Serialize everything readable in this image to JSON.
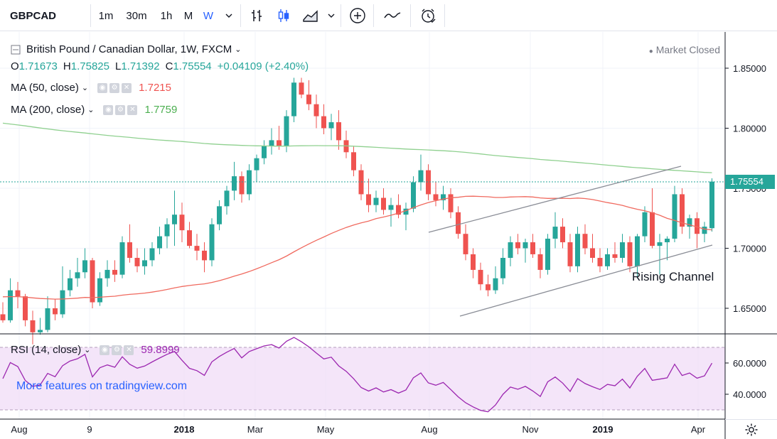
{
  "toolbar": {
    "symbol": "GBPCAD",
    "intervals": [
      "1m",
      "30m",
      "1h",
      "M",
      "W"
    ],
    "active_interval": "W",
    "more_intervals_icon": "chevron-down-icon",
    "tools": [
      "bar-chart-icon",
      "candles-icon",
      "area-chart-icon",
      "chevron-down-icon",
      "plus-circle-icon",
      "compare-icon",
      "alert-clock-icon"
    ]
  },
  "legend": {
    "title": "British Pound / Canadian Dollar, 1W, FXCM",
    "open_label": "O",
    "open": "1.71673",
    "high_label": "H",
    "high": "1.75825",
    "low_label": "L",
    "low": "1.71392",
    "close_label": "C",
    "close": "1.75554",
    "change": "+0.04109 (+2.40%)",
    "ma50_label": "MA (50, close)",
    "ma50_value": "1.7215",
    "ma200_label": "MA (200, close)",
    "ma200_value": "1.7759",
    "rsi_label": "RSI (14, close)",
    "rsi_value": "59.8999"
  },
  "market_status": "Market Closed",
  "watermark": "More features on tradingview.com",
  "annotation": "Rising Channel",
  "last_price_tag": "1.75554",
  "colors": {
    "up": "#26a69a",
    "down": "#ef5350",
    "ma50": "#f06a5f",
    "ma200": "#8fd08f",
    "rsi": "#9c27b0",
    "accent": "#2962ff"
  },
  "chart_data": {
    "type": "candlestick",
    "instrument": "GBPCAD",
    "timeframe": "1W",
    "y_axis": {
      "ticks": [
        "1.85000",
        "1.80000",
        "1.75000",
        "1.70000",
        "1.65000"
      ]
    },
    "x_axis": {
      "ticks": [
        "Aug",
        "9",
        "2018",
        "Mar",
        "May",
        "Aug",
        "Nov",
        "2019",
        "Apr"
      ]
    },
    "candles": [
      [
        1.645,
        1.655,
        1.638,
        1.64
      ],
      [
        1.64,
        1.675,
        1.638,
        1.665
      ],
      [
        1.665,
        1.672,
        1.65,
        1.66
      ],
      [
        1.66,
        1.662,
        1.635,
        1.64
      ],
      [
        1.64,
        1.648,
        1.62,
        1.63
      ],
      [
        1.63,
        1.642,
        1.628,
        1.632
      ],
      [
        1.632,
        1.66,
        1.63,
        1.65
      ],
      [
        1.65,
        1.658,
        1.64,
        1.645
      ],
      [
        1.645,
        1.685,
        1.642,
        1.665
      ],
      [
        1.665,
        1.682,
        1.66,
        1.675
      ],
      [
        1.675,
        1.692,
        1.668,
        1.68
      ],
      [
        1.68,
        1.7,
        1.675,
        1.69
      ],
      [
        1.69,
        1.692,
        1.65,
        1.655
      ],
      [
        1.655,
        1.68,
        1.652,
        1.675
      ],
      [
        1.675,
        1.69,
        1.668,
        1.682
      ],
      [
        1.682,
        1.69,
        1.672,
        1.678
      ],
      [
        1.678,
        1.71,
        1.675,
        1.705
      ],
      [
        1.705,
        1.72,
        1.688,
        1.692
      ],
      [
        1.692,
        1.7,
        1.68,
        1.685
      ],
      [
        1.685,
        1.7,
        1.678,
        1.69
      ],
      [
        1.69,
        1.705,
        1.685,
        1.7
      ],
      [
        1.7,
        1.718,
        1.695,
        1.71
      ],
      [
        1.71,
        1.725,
        1.7,
        1.72
      ],
      [
        1.72,
        1.748,
        1.702,
        1.728
      ],
      [
        1.728,
        1.738,
        1.705,
        1.715
      ],
      [
        1.715,
        1.722,
        1.7,
        1.702
      ],
      [
        1.702,
        1.712,
        1.69,
        1.698
      ],
      [
        1.698,
        1.705,
        1.68,
        1.69
      ],
      [
        1.69,
        1.725,
        1.685,
        1.72
      ],
      [
        1.72,
        1.74,
        1.715,
        1.735
      ],
      [
        1.735,
        1.752,
        1.728,
        1.748
      ],
      [
        1.748,
        1.772,
        1.74,
        1.76
      ],
      [
        1.76,
        1.764,
        1.738,
        1.745
      ],
      [
        1.745,
        1.77,
        1.74,
        1.765
      ],
      [
        1.765,
        1.778,
        1.755,
        1.775
      ],
      [
        1.775,
        1.79,
        1.77,
        1.785
      ],
      [
        1.785,
        1.8,
        1.778,
        1.79
      ],
      [
        1.79,
        1.802,
        1.782,
        1.785
      ],
      [
        1.785,
        1.815,
        1.78,
        1.81
      ],
      [
        1.81,
        1.842,
        1.805,
        1.838
      ],
      [
        1.838,
        1.842,
        1.825,
        1.828
      ],
      [
        1.828,
        1.84,
        1.815,
        1.82
      ],
      [
        1.82,
        1.828,
        1.8,
        1.81
      ],
      [
        1.81,
        1.82,
        1.795,
        1.8
      ],
      [
        1.8,
        1.812,
        1.79,
        1.805
      ],
      [
        1.805,
        1.815,
        1.782,
        1.79
      ],
      [
        1.79,
        1.798,
        1.775,
        1.78
      ],
      [
        1.78,
        1.785,
        1.76,
        1.765
      ],
      [
        1.765,
        1.77,
        1.74,
        1.745
      ],
      [
        1.745,
        1.758,
        1.73,
        1.736
      ],
      [
        1.736,
        1.748,
        1.73,
        1.742
      ],
      [
        1.742,
        1.75,
        1.728,
        1.732
      ],
      [
        1.732,
        1.742,
        1.718,
        1.736
      ],
      [
        1.736,
        1.745,
        1.725,
        1.728
      ],
      [
        1.728,
        1.738,
        1.715,
        1.733
      ],
      [
        1.733,
        1.76,
        1.73,
        1.755
      ],
      [
        1.755,
        1.778,
        1.748,
        1.765
      ],
      [
        1.765,
        1.77,
        1.74,
        1.745
      ],
      [
        1.745,
        1.755,
        1.735,
        1.74
      ],
      [
        1.74,
        1.752,
        1.732,
        1.745
      ],
      [
        1.745,
        1.75,
        1.725,
        1.73
      ],
      [
        1.73,
        1.735,
        1.708,
        1.712
      ],
      [
        1.712,
        1.72,
        1.69,
        1.695
      ],
      [
        1.695,
        1.7,
        1.675,
        1.682
      ],
      [
        1.682,
        1.688,
        1.665,
        1.67
      ],
      [
        1.67,
        1.678,
        1.66,
        1.665
      ],
      [
        1.665,
        1.685,
        1.662,
        1.675
      ],
      [
        1.675,
        1.7,
        1.67,
        1.692
      ],
      [
        1.692,
        1.71,
        1.685,
        1.705
      ],
      [
        1.705,
        1.712,
        1.695,
        1.7
      ],
      [
        1.7,
        1.708,
        1.688,
        1.705
      ],
      [
        1.705,
        1.712,
        1.692,
        1.695
      ],
      [
        1.695,
        1.7,
        1.675,
        1.682
      ],
      [
        1.682,
        1.712,
        1.678,
        1.708
      ],
      [
        1.708,
        1.73,
        1.7,
        1.718
      ],
      [
        1.718,
        1.725,
        1.7,
        1.705
      ],
      [
        1.705,
        1.712,
        1.68,
        1.685
      ],
      [
        1.685,
        1.718,
        1.68,
        1.712
      ],
      [
        1.712,
        1.72,
        1.695,
        1.7
      ],
      [
        1.7,
        1.712,
        1.688,
        1.692
      ],
      [
        1.692,
        1.7,
        1.68,
        1.685
      ],
      [
        1.685,
        1.7,
        1.682,
        1.695
      ],
      [
        1.695,
        1.705,
        1.688,
        1.692
      ],
      [
        1.692,
        1.712,
        1.688,
        1.705
      ],
      [
        1.705,
        1.71,
        1.68,
        1.685
      ],
      [
        1.685,
        1.712,
        1.675,
        1.71
      ],
      [
        1.71,
        1.735,
        1.705,
        1.73
      ],
      [
        1.73,
        1.75,
        1.7,
        1.702
      ],
      [
        1.702,
        1.712,
        1.678,
        1.705
      ],
      [
        1.705,
        1.71,
        1.69,
        1.708
      ],
      [
        1.708,
        1.752,
        1.705,
        1.745
      ],
      [
        1.745,
        1.75,
        1.712,
        1.718
      ],
      [
        1.718,
        1.728,
        1.708,
        1.725
      ],
      [
        1.725,
        1.73,
        1.7,
        1.712
      ],
      [
        1.712,
        1.722,
        1.705,
        1.718
      ],
      [
        1.71673,
        1.75825,
        1.71392,
        1.75554
      ]
    ],
    "rsi": {
      "period": 14,
      "upper_band": 70,
      "lower_band": 30,
      "last": 59.8999
    }
  }
}
